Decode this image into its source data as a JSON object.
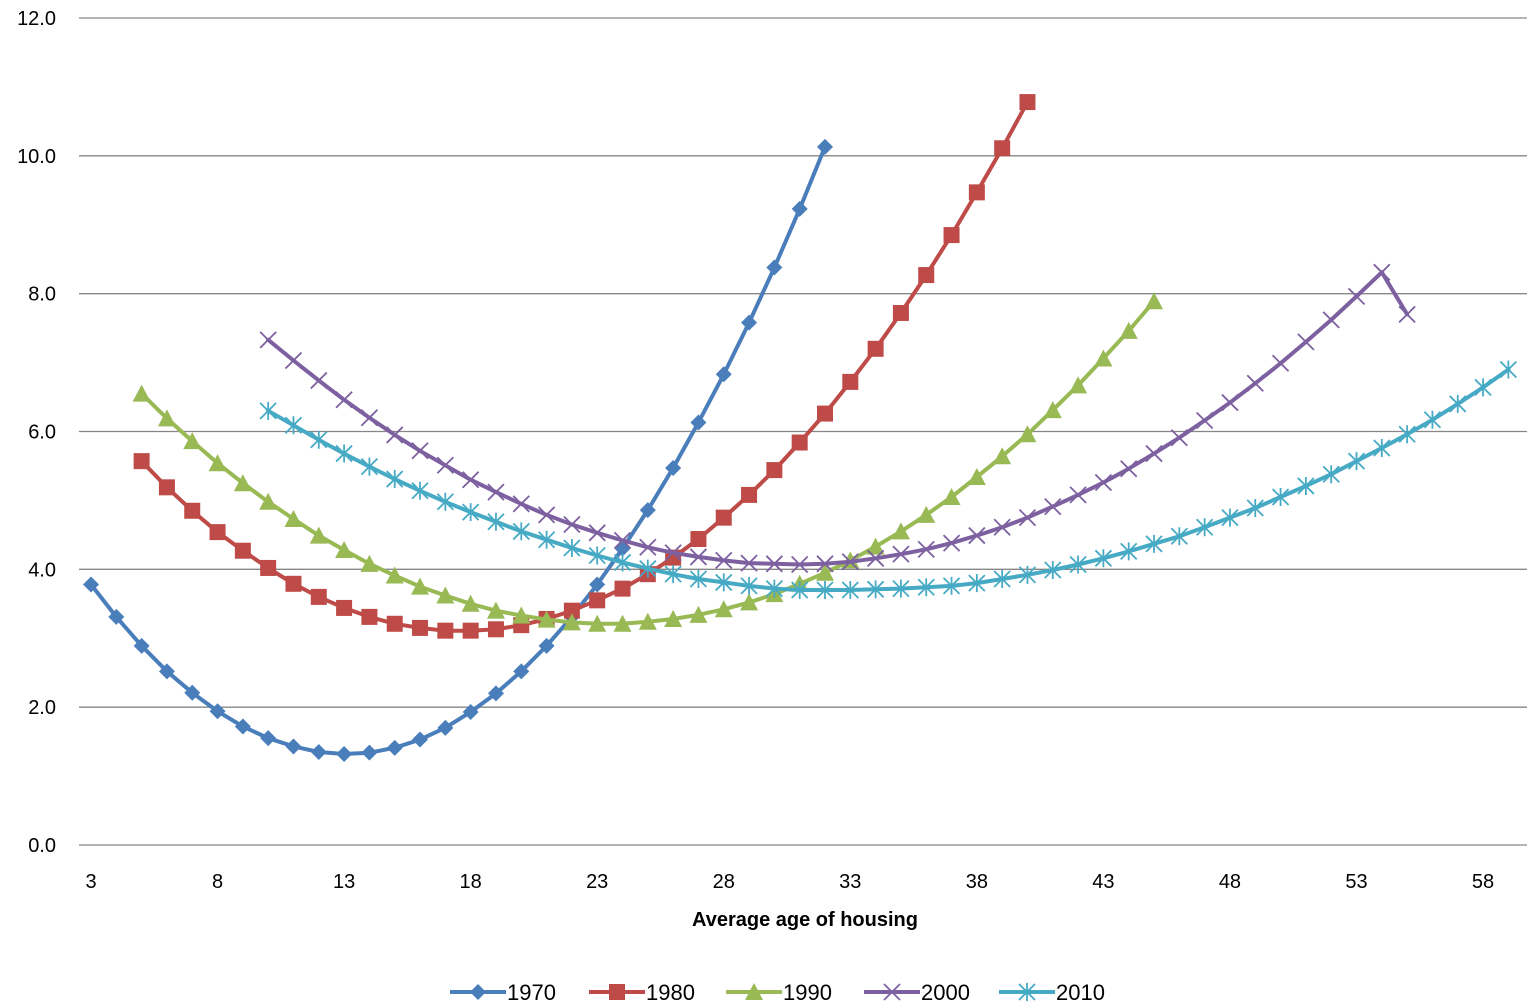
{
  "chart_data": {
    "type": "line",
    "title": "",
    "xlabel": "Average age of housing",
    "ylabel": "",
    "xlim": [
      3,
      59
    ],
    "ylim": [
      0,
      12
    ],
    "x_ticks": [
      "3",
      "8",
      "13",
      "18",
      "23",
      "28",
      "33",
      "38",
      "43",
      "48",
      "53",
      "58"
    ],
    "y_ticks": [
      "0.0",
      "2.0",
      "4.0",
      "6.0",
      "8.0",
      "10.0",
      "12.0"
    ],
    "grid": "horizontal",
    "legend_position": "bottom",
    "series": [
      {
        "name": "1970",
        "color": "#4a7ebb",
        "marker": "diamond",
        "x": [
          3,
          4,
          5,
          6,
          7,
          8,
          9,
          10,
          11,
          12,
          13,
          14,
          15,
          16,
          17,
          18,
          19,
          20,
          21,
          22,
          23,
          24,
          25,
          26,
          27,
          28,
          29,
          30,
          31,
          32
        ],
        "values": [
          3.78,
          3.31,
          2.89,
          2.52,
          2.21,
          1.94,
          1.72,
          1.55,
          1.43,
          1.35,
          1.32,
          1.34,
          1.41,
          1.53,
          1.7,
          1.93,
          2.2,
          2.52,
          2.89,
          3.31,
          3.78,
          4.3,
          4.86,
          5.47,
          6.13,
          6.83,
          7.58,
          8.38,
          9.23,
          10.13
        ]
      },
      {
        "name": "1980",
        "color": "#be4b48",
        "marker": "square",
        "x": [
          5,
          6,
          7,
          8,
          9,
          10,
          11,
          12,
          13,
          14,
          15,
          16,
          17,
          18,
          19,
          20,
          21,
          22,
          23,
          24,
          25,
          26,
          27,
          28,
          29,
          30,
          31,
          32,
          33,
          34,
          35,
          36,
          37,
          38,
          39,
          40
        ],
        "values": [
          5.57,
          5.19,
          4.85,
          4.54,
          4.27,
          4.02,
          3.79,
          3.6,
          3.44,
          3.31,
          3.21,
          3.15,
          3.11,
          3.11,
          3.13,
          3.19,
          3.28,
          3.4,
          3.55,
          3.72,
          3.93,
          4.17,
          4.44,
          4.75,
          5.08,
          5.44,
          5.84,
          6.26,
          6.72,
          7.2,
          7.72,
          8.27,
          8.85,
          9.47,
          10.11,
          10.78
        ]
      },
      {
        "name": "1990",
        "color": "#98b954",
        "marker": "triangle",
        "x": [
          5,
          6,
          7,
          8,
          9,
          10,
          11,
          12,
          13,
          14,
          15,
          16,
          17,
          18,
          19,
          20,
          21,
          22,
          23,
          24,
          25,
          26,
          27,
          28,
          29,
          30,
          31,
          32,
          33,
          34,
          35,
          36,
          37,
          38,
          39,
          40,
          41,
          42,
          43,
          44,
          45
        ],
        "values": [
          6.55,
          6.19,
          5.86,
          5.54,
          5.25,
          4.98,
          4.73,
          4.49,
          4.28,
          4.08,
          3.91,
          3.75,
          3.62,
          3.5,
          3.4,
          3.33,
          3.27,
          3.23,
          3.21,
          3.21,
          3.24,
          3.28,
          3.34,
          3.42,
          3.52,
          3.64,
          3.79,
          3.95,
          4.13,
          4.33,
          4.55,
          4.79,
          5.05,
          5.34,
          5.64,
          5.96,
          6.31,
          6.67,
          7.06,
          7.46,
          7.89
        ]
      },
      {
        "name": "2000",
        "color": "#7d60a0",
        "marker": "x",
        "x": [
          10,
          11,
          12,
          13,
          14,
          15,
          16,
          17,
          18,
          19,
          20,
          21,
          22,
          23,
          24,
          25,
          26,
          27,
          28,
          29,
          30,
          31,
          32,
          33,
          34,
          35,
          36,
          37,
          38,
          39,
          40,
          41,
          42,
          43,
          44,
          45,
          46,
          47,
          48,
          49,
          50,
          51,
          52,
          53,
          54,
          55
        ],
        "values": [
          7.33,
          7.03,
          6.74,
          6.46,
          6.2,
          5.95,
          5.72,
          5.51,
          5.3,
          5.12,
          4.95,
          4.79,
          4.65,
          4.53,
          4.42,
          4.32,
          4.24,
          4.18,
          4.13,
          4.09,
          4.08,
          4.07,
          4.08,
          4.11,
          4.16,
          4.22,
          4.29,
          4.38,
          4.49,
          4.61,
          4.75,
          4.91,
          5.08,
          5.26,
          5.46,
          5.68,
          5.91,
          6.16,
          6.42,
          6.7,
          6.99,
          7.3,
          7.62,
          7.96,
          8.31,
          7.7
        ]
      },
      {
        "name": "2010",
        "color": "#46aac5",
        "marker": "star",
        "x": [
          10,
          11,
          12,
          13,
          14,
          15,
          16,
          17,
          18,
          19,
          20,
          21,
          22,
          23,
          24,
          25,
          26,
          27,
          28,
          29,
          30,
          31,
          32,
          33,
          34,
          35,
          36,
          37,
          38,
          39,
          40,
          41,
          42,
          43,
          44,
          45,
          46,
          47,
          48,
          49,
          50,
          51,
          52,
          53,
          54,
          55,
          56,
          57,
          58,
          59
        ],
        "values": [
          6.3,
          6.09,
          5.88,
          5.68,
          5.49,
          5.31,
          5.14,
          4.98,
          4.83,
          4.69,
          4.55,
          4.43,
          4.31,
          4.2,
          4.1,
          4.01,
          3.93,
          3.86,
          3.81,
          3.76,
          3.72,
          3.7,
          3.7,
          3.7,
          3.71,
          3.72,
          3.74,
          3.76,
          3.8,
          3.86,
          3.92,
          3.99,
          4.07,
          4.16,
          4.26,
          4.37,
          4.48,
          4.61,
          4.75,
          4.89,
          5.05,
          5.21,
          5.38,
          5.57,
          5.76,
          5.96,
          6.17,
          6.4,
          6.64,
          6.9
        ]
      }
    ]
  }
}
